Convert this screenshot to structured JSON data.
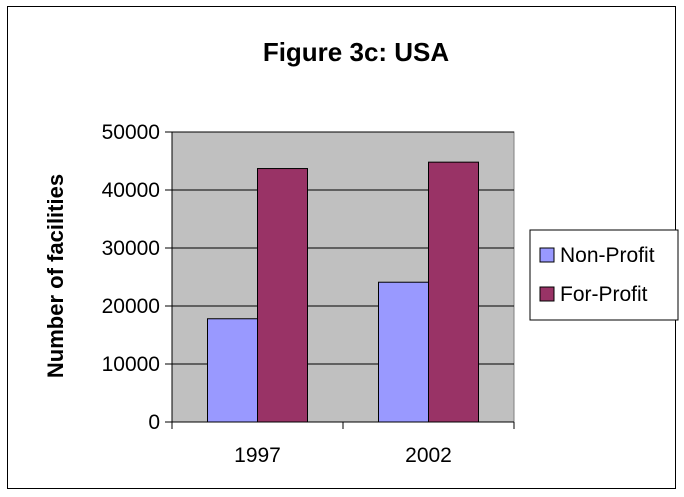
{
  "chart_data": {
    "type": "bar",
    "title": "Figure 3c: USA",
    "xlabel": "",
    "ylabel": "Number of facilities",
    "categories": [
      "1997",
      "2002"
    ],
    "series": [
      {
        "name": "Non-Profit",
        "values": [
          17800,
          24100
        ],
        "color": "#9999ff"
      },
      {
        "name": "For-Profit",
        "values": [
          43700,
          44800
        ],
        "color": "#993366"
      }
    ],
    "ylim": [
      0,
      50000
    ],
    "yticks": [
      0,
      10000,
      20000,
      30000,
      40000,
      50000
    ],
    "ytick_labels": [
      "0",
      "10000",
      "20000",
      "30000",
      "40000",
      "50000"
    ],
    "grid": true,
    "plot_background": "#c0c0c0",
    "legend_position": "right"
  }
}
